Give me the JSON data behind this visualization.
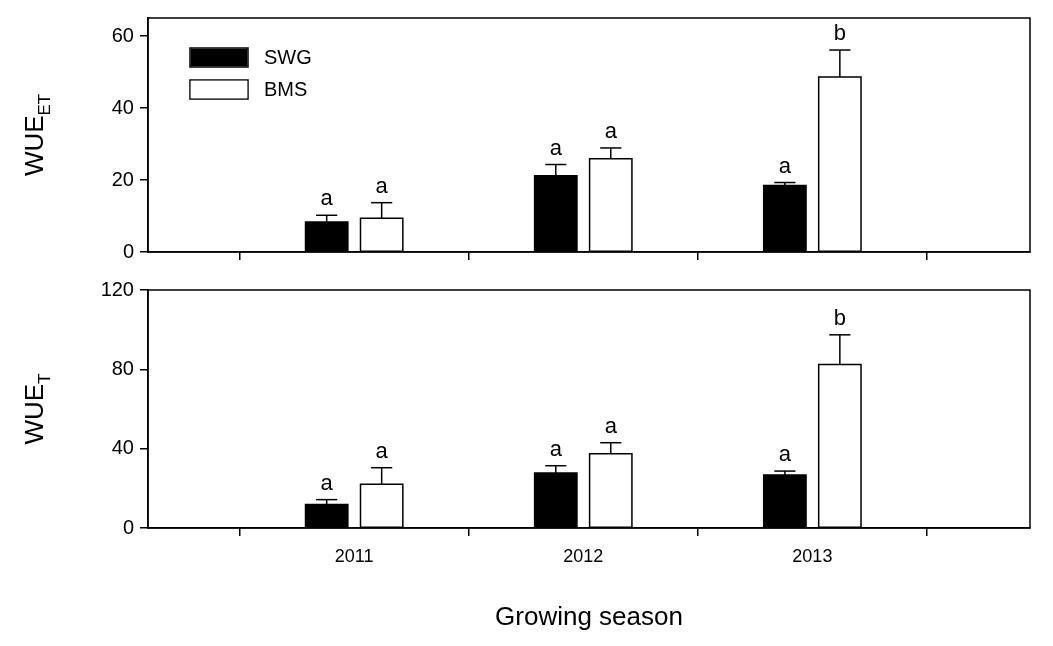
{
  "chart_data": [
    {
      "type": "bar",
      "ylabel": "WUE$_{ET}$",
      "categories": [
        "2011",
        "2012",
        "2013"
      ],
      "series": [
        {
          "name": "SWG",
          "color": "#000000",
          "values": [
            8.3,
            21.2,
            18.5
          ],
          "errors": [
            [
              8.3,
              10.2
            ],
            [
              21.2,
              24.3
            ],
            [
              18.5,
              19.3
            ]
          ]
        },
        {
          "name": "BMS",
          "color": "#ffffff",
          "values": [
            9.4,
            25.9,
            48.6
          ],
          "errors": [
            [
              9.4,
              13.7
            ],
            [
              25.9,
              28.9
            ],
            [
              48.6,
              56.1
            ]
          ]
        }
      ],
      "ylim": [
        0,
        65
      ],
      "yticks": [
        0,
        20,
        40,
        60
      ],
      "tick_labels": "y",
      "legend": "top left",
      "grid": false,
      "annotations": [
        "a",
        "a",
        "a",
        "a",
        "a",
        "b"
      ]
    },
    {
      "type": "bar",
      "xlabel": "Growing season",
      "ylabel": "WUE$_{T}$",
      "categories": [
        "2011",
        "2012",
        "2013"
      ],
      "series": [
        {
          "color": "#000000",
          "values": [
            11.8,
            27.7,
            26.7
          ],
          "errors": [
            [
              11.8,
              14.3
            ],
            [
              27.7,
              31.4
            ],
            [
              26.7,
              28.7
            ]
          ]
        },
        {
          "color": "#ffffff",
          "values": [
            22.1,
            37.5,
            82.5
          ],
          "errors": [
            [
              22.1,
              30.4
            ],
            [
              37.5,
              43.0
            ],
            [
              82.5,
              97.4
            ]
          ]
        }
      ],
      "ylim": [
        0,
        120
      ],
      "yticks": [
        0,
        40,
        80,
        120
      ],
      "legend": false,
      "grid": false,
      "annotations": [
        "a",
        "a",
        "a",
        "a",
        "a",
        "b"
      ]
    }
  ]
}
